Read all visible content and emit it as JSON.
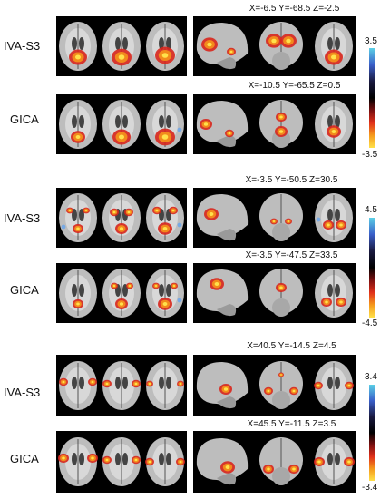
{
  "groups": [
    {
      "colorbar": {
        "max": "3.5",
        "min": "-3.5"
      },
      "rows": [
        {
          "label": "IVA-S3",
          "coords": "X=-6.5 Y=-68.5 Z=-2.5"
        },
        {
          "label": "GICA",
          "coords": "X=-10.5 Y=-65.5 Z=0.5"
        }
      ]
    },
    {
      "colorbar": {
        "max": "4.5",
        "min": "-4.5"
      },
      "rows": [
        {
          "label": "IVA-S3",
          "coords": "X=-3.5 Y=-50.5 Z=30.5"
        },
        {
          "label": "GICA",
          "coords": "X=-3.5 Y=-47.5 Z=33.5"
        }
      ]
    },
    {
      "colorbar": {
        "max": "3.4",
        "min": "-3.4"
      },
      "rows": [
        {
          "label": "IVA-S3",
          "coords": "X=40.5 Y=-14.5 Z=4.5"
        },
        {
          "label": "GICA",
          "coords": "X=45.5 Y=-11.5 Z=3.5"
        }
      ]
    }
  ],
  "colors": {
    "panel_bg": "#000000",
    "brain": "#bdbdbd",
    "hot_core": "#ffe14a",
    "hot_mid": "#f28a1c",
    "hot_edge": "#d8261c",
    "cold": "#6fa6e8"
  }
}
